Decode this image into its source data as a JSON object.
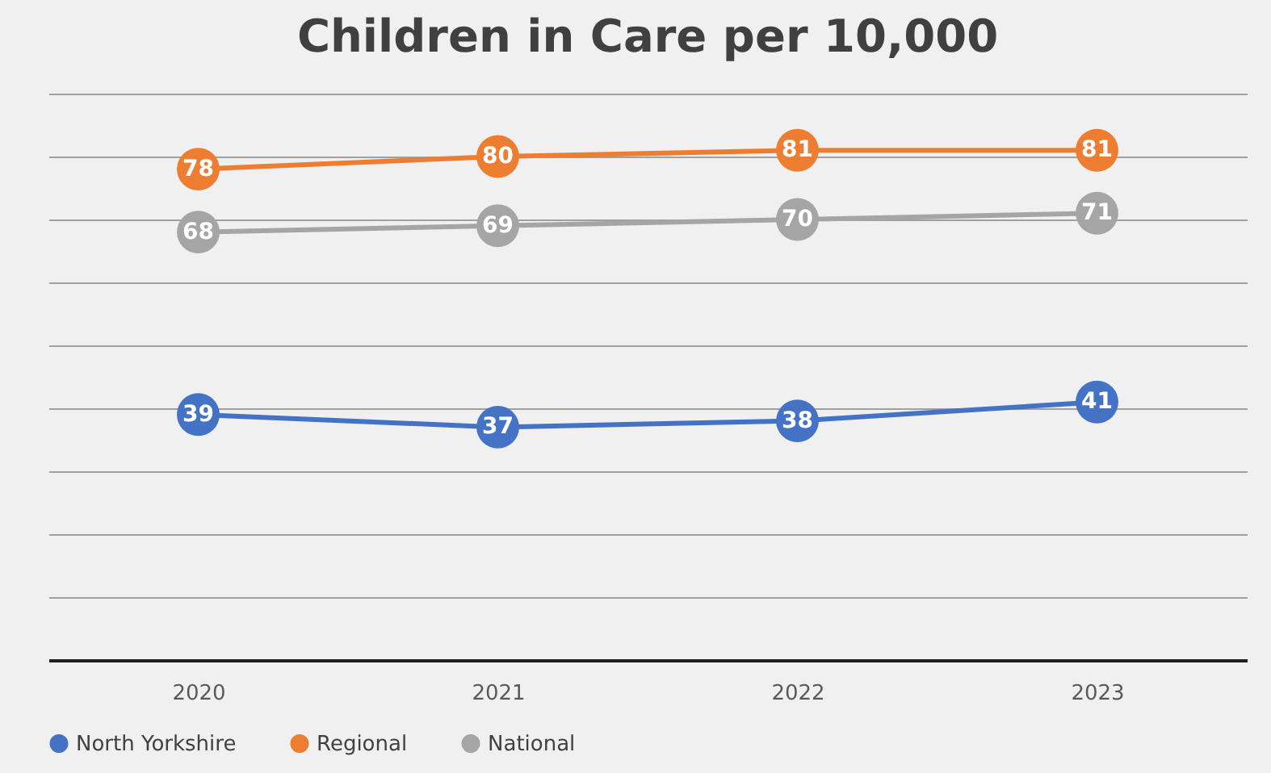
{
  "chart_data": {
    "type": "line",
    "title": "Children in Care per 10,000",
    "categories": [
      "2020",
      "2021",
      "2022",
      "2023"
    ],
    "series": [
      {
        "name": "North Yorkshire",
        "color": "#4472c4",
        "values": [
          39,
          37,
          38,
          41
        ]
      },
      {
        "name": "Regional",
        "color": "#ed7d31",
        "values": [
          78,
          80,
          81,
          81
        ]
      },
      {
        "name": "National",
        "color": "#a5a5a5",
        "values": [
          68,
          69,
          70,
          71
        ]
      }
    ],
    "grid": "y",
    "legend": "bottom",
    "marker": "circle",
    "data_labels": true,
    "tick_labels": "x"
  }
}
